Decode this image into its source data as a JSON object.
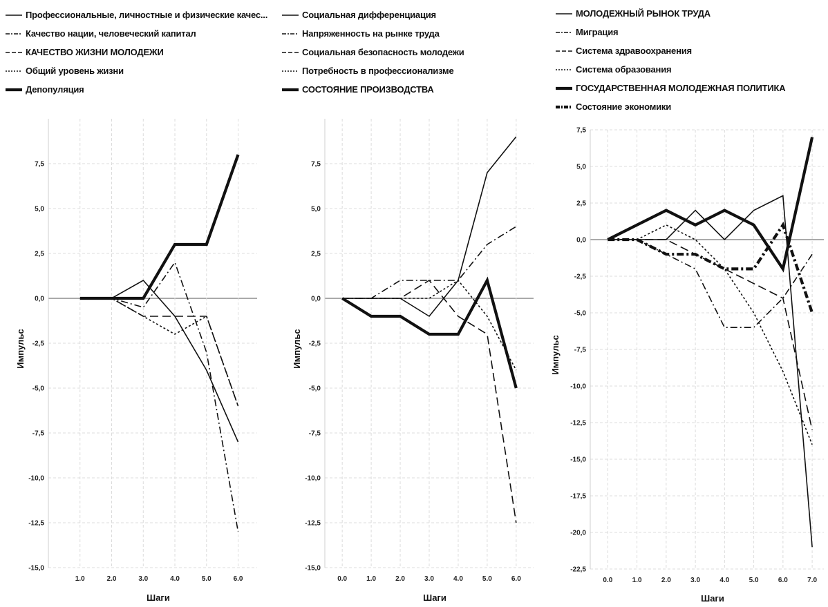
{
  "chart_data": [
    {
      "type": "line",
      "xlabel": "Шаги",
      "ylabel": "Импульс",
      "x": [
        1.0,
        2.0,
        3.0,
        4.0,
        5.0,
        6.0
      ],
      "x_tick_labels": [
        "1.0",
        "2.0",
        "3.0",
        "4.0",
        "5.0",
        "6.0"
      ],
      "y_ticks": [
        7.5,
        5.0,
        2.5,
        0.0,
        -2.5,
        -5.0,
        -7.5,
        -10.0,
        -12.5,
        -15.0
      ],
      "y_tick_labels": [
        "7,5",
        "5,0",
        "2,5",
        "0,0",
        "-2,5",
        "-5,0",
        "-7,5",
        "-10,0",
        "-12,5",
        "-15,0"
      ],
      "xlim": [
        0.0,
        6.6
      ],
      "ylim": [
        -15.0,
        10.0
      ],
      "grid": true,
      "legend_position": "top",
      "series": [
        {
          "name": "Профессиональные, личностные и физические качес...",
          "style": "solid-thin",
          "values": [
            0,
            0,
            1,
            -1,
            -4,
            -8
          ]
        },
        {
          "name": "Качество нации, человеческий капитал",
          "style": "dashdot",
          "values": [
            0,
            0,
            -0.5,
            2,
            -3,
            -13
          ]
        },
        {
          "name": "КАЧЕСТВО ЖИЗНИ МОЛОДЕЖИ",
          "style": "dashed",
          "values": [
            0,
            0,
            -1,
            -1,
            -1,
            -6
          ]
        },
        {
          "name": "Общий уровень жизни",
          "style": "dotted",
          "values": [
            0,
            0,
            -1,
            -2,
            -1,
            -6
          ]
        },
        {
          "name": "Депопуляция",
          "style": "solid-thick",
          "values": [
            0,
            0,
            0,
            3,
            3,
            8
          ]
        }
      ]
    },
    {
      "type": "line",
      "xlabel": "Шаги",
      "ylabel": "Импульс",
      "x": [
        0.0,
        1.0,
        2.0,
        3.0,
        4.0,
        5.0,
        6.0
      ],
      "x_tick_labels": [
        "0.0",
        "1.0",
        "2.0",
        "3.0",
        "4.0",
        "5.0",
        "6.0"
      ],
      "y_ticks": [
        7.5,
        5.0,
        2.5,
        0.0,
        -2.5,
        -5.0,
        -7.5,
        -10.0,
        -12.5,
        -15.0
      ],
      "y_tick_labels": [
        "7,5",
        "5,0",
        "2,5",
        "0,0",
        "-2,5",
        "-5,0",
        "-7,5",
        "-10,0",
        "-12,5",
        "-15,0"
      ],
      "xlim": [
        -0.6,
        6.6
      ],
      "ylim": [
        -15.0,
        10.0
      ],
      "grid": true,
      "legend_position": "top",
      "series": [
        {
          "name": "Социальная дифференциация",
          "style": "solid-thin",
          "values": [
            0,
            0,
            0,
            -1,
            1,
            7,
            9
          ]
        },
        {
          "name": "Напряженность на рынке труда",
          "style": "dashdot",
          "values": [
            0,
            0,
            1,
            1,
            1,
            3,
            4
          ]
        },
        {
          "name": "Социальная безопасность молодежи",
          "style": "dashed",
          "values": [
            0,
            0,
            0,
            1,
            -1,
            -2,
            -12.5
          ]
        },
        {
          "name": "Потребность в профессионализме",
          "style": "dotted",
          "values": [
            0,
            0,
            0,
            0,
            1,
            -1,
            -4
          ]
        },
        {
          "name": "СОСТОЯНИЕ ПРОИЗВОДСТВА",
          "style": "solid-thick",
          "values": [
            0,
            -1,
            -1,
            -2,
            -2,
            1,
            -5
          ]
        }
      ]
    },
    {
      "type": "line",
      "xlabel": "Шаги",
      "ylabel": "Импульс",
      "x": [
        0.0,
        1.0,
        2.0,
        3.0,
        4.0,
        5.0,
        6.0,
        7.0
      ],
      "x_tick_labels": [
        "0.0",
        "1.0",
        "2.0",
        "3.0",
        "4.0",
        "5.0",
        "6.0",
        "7.0"
      ],
      "y_ticks": [
        7.5,
        5.0,
        2.5,
        0.0,
        -2.5,
        -5.0,
        -7.5,
        -10.0,
        -12.5,
        -15.0,
        -17.5,
        -20.0,
        -22.5
      ],
      "y_tick_labels": [
        "7,5",
        "5,0",
        "2,5",
        "0,0",
        "-2,5",
        "-5,0",
        "-7,5",
        "-10,0",
        "-12,5",
        "-15,0",
        "-17,5",
        "-20,0",
        "-22,5"
      ],
      "xlim": [
        -0.6,
        7.4
      ],
      "ylim": [
        -22.5,
        7.5
      ],
      "grid": true,
      "legend_position": "top",
      "series": [
        {
          "name": "МОЛОДЕЖНЫЙ РЫНОК ТРУДА",
          "style": "solid-thin",
          "values": [
            0,
            0,
            0,
            2,
            0,
            2,
            3,
            -21
          ]
        },
        {
          "name": "Миграция",
          "style": "dashdot",
          "values": [
            0,
            0,
            -1,
            -2,
            -6,
            -6,
            -4,
            -1
          ]
        },
        {
          "name": "Система здравоохранения",
          "style": "dashed",
          "values": [
            0,
            0,
            0,
            -1,
            -2,
            -3,
            -4,
            -13
          ]
        },
        {
          "name": "Система образования",
          "style": "dotted",
          "values": [
            0,
            0,
            1,
            0,
            -2,
            -5,
            -9,
            -14
          ]
        },
        {
          "name": "ГОСУДАРСТВЕННАЯ МОЛОДЕЖНАЯ ПОЛИТИКА",
          "style": "solid-thick",
          "values": [
            0,
            1,
            2,
            1,
            2,
            1,
            -2,
            7
          ]
        },
        {
          "name": "Состояние экономики",
          "style": "dashdot-thick",
          "values": [
            0,
            0,
            -1,
            -1,
            -2,
            -2,
            1,
            -5
          ]
        }
      ]
    }
  ]
}
